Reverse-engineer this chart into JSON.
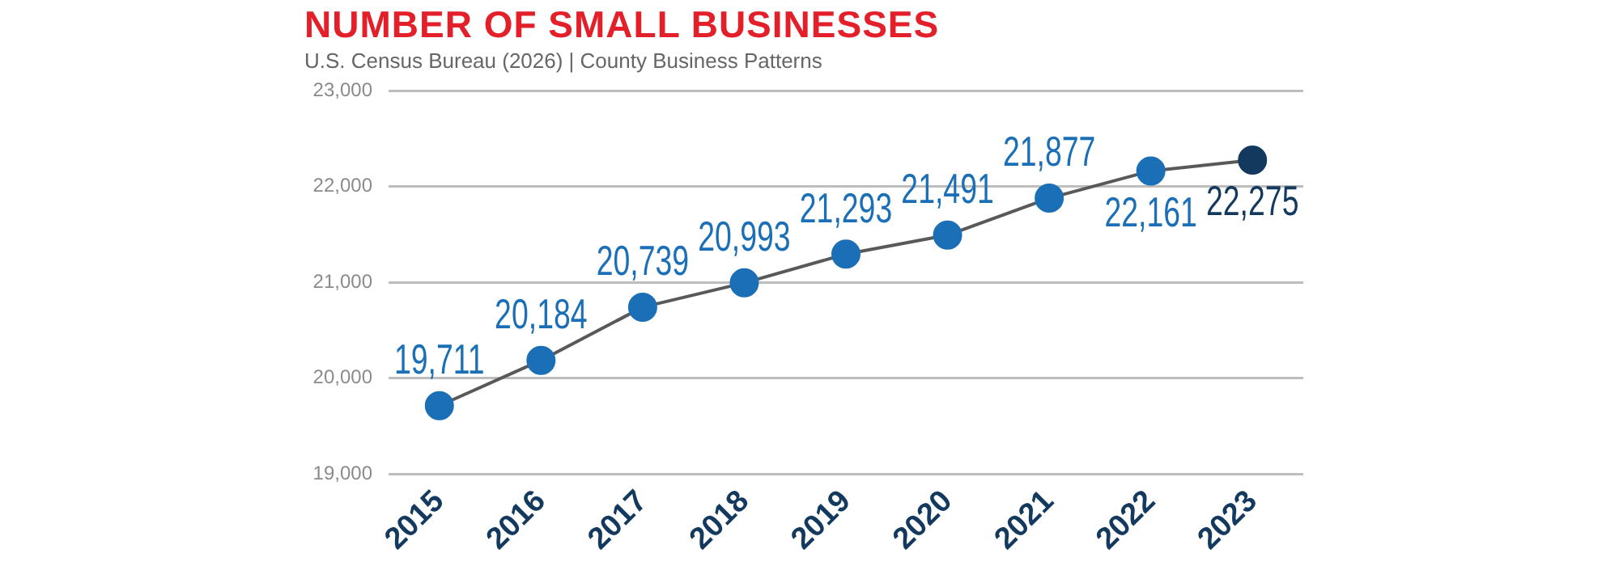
{
  "chart_data": {
    "type": "line",
    "title": "NUMBER OF SMALL BUSINESSES",
    "subtitle": "U.S. Census Bureau (2026) | County Business Patterns",
    "categories": [
      "2015",
      "2016",
      "2017",
      "2018",
      "2019",
      "2020",
      "2021",
      "2022",
      "2023"
    ],
    "series": [
      {
        "color": "#595959",
        "colors": [
          "#1b6fb6",
          "#1b6fb6",
          "#1b6fb6",
          "#1b6fb6",
          "#1b6fb6",
          "#1b6fb6",
          "#1b6fb6",
          "#1b6fb6",
          "#133a5e"
        ],
        "values": [
          19711,
          20184,
          20739,
          20993,
          21293,
          21491,
          21877,
          22161,
          22275
        ],
        "value_labels": [
          "19,711",
          "20,184",
          "20,739",
          "20,993",
          "21,293",
          "21,491",
          "21,877",
          "22,161",
          "22,275"
        ]
      }
    ],
    "ylim": [
      19000,
      23000
    ],
    "yticks": [
      {
        "value": 19000,
        "label": "19,000"
      },
      {
        "value": 20000,
        "label": "20,000"
      },
      {
        "value": 21000,
        "label": "21,000"
      },
      {
        "value": 22000,
        "label": "22,000"
      },
      {
        "value": 23000,
        "label": "23,000"
      }
    ],
    "grid": "y",
    "legend": false,
    "marker": "circle",
    "line_style": "solid"
  }
}
